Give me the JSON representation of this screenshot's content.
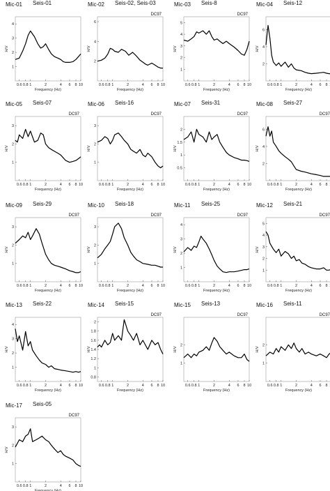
{
  "chart_data": [
    {
      "type": "line",
      "mic": "Mic-01",
      "seis": "Seis-01",
      "tag": "",
      "ylabel": "H/V",
      "xlabel": "Frequency (Hz)",
      "xlim": [
        0.5,
        10
      ],
      "ylim": [
        0,
        4.5
      ],
      "yticks": [
        1,
        2,
        3,
        4
      ],
      "xticks": [
        "0.6",
        "0.8",
        "1",
        "2",
        "4",
        "6",
        "8",
        "10"
      ],
      "x": [
        0.5,
        0.6,
        0.7,
        0.8,
        0.9,
        1.0,
        1.2,
        1.4,
        1.6,
        1.8,
        2.0,
        2.3,
        2.6,
        3,
        3.5,
        4,
        4.5,
        5,
        6,
        7,
        8,
        9,
        10
      ],
      "y": [
        1.5,
        1.6,
        2.1,
        2.6,
        3.2,
        3.5,
        3.1,
        2.6,
        2.3,
        2.4,
        2.6,
        2.2,
        1.9,
        1.7,
        1.6,
        1.5,
        1.35,
        1.3,
        1.3,
        1.35,
        1.5,
        1.7,
        1.9
      ]
    },
    {
      "type": "line",
      "mic": "Mic-02",
      "seis": "Seis-02, Seis-03",
      "tag": "DC97",
      "ylabel": "H/V",
      "xlabel": "Frequency (Hz)",
      "xlim": [
        0.5,
        10
      ],
      "ylim": [
        0,
        6.5
      ],
      "yticks": [
        2,
        4,
        6
      ],
      "xticks": [
        "0.6",
        "0.8",
        "1",
        "2",
        "4",
        "6",
        "8",
        "10"
      ],
      "x": [
        0.5,
        0.6,
        0.7,
        0.8,
        0.9,
        1.0,
        1.1,
        1.3,
        1.5,
        1.8,
        2.1,
        2.5,
        3,
        3.5,
        4,
        4.5,
        5,
        6,
        7,
        8,
        9,
        10
      ],
      "y": [
        2.0,
        2.1,
        2.3,
        2.7,
        3.3,
        3.2,
        3.0,
        2.9,
        3.2,
        3.0,
        2.6,
        2.9,
        2.5,
        2.1,
        1.9,
        1.7,
        1.6,
        1.8,
        1.6,
        1.4,
        1.3,
        1.3
      ]
    },
    {
      "type": "line",
      "mic": "Mic-03",
      "seis": "Seis-8",
      "tag": "DC97",
      "ylabel": "H/V",
      "xlabel": "Frequency (Hz)",
      "xlim": [
        0.5,
        10
      ],
      "ylim": [
        0,
        5.5
      ],
      "yticks": [
        1,
        2,
        3,
        4,
        5
      ],
      "xticks": [
        "0.6",
        "0.8",
        "1",
        "2",
        "4",
        "6",
        "8",
        "10"
      ],
      "x": [
        0.5,
        0.6,
        0.7,
        0.8,
        0.9,
        1.0,
        1.2,
        1.4,
        1.6,
        1.8,
        2,
        2.3,
        2.6,
        3,
        3.5,
        4,
        5,
        6,
        7,
        8,
        9,
        10
      ],
      "y": [
        3.5,
        3.4,
        3.6,
        3.8,
        4.2,
        4.1,
        4.3,
        4.0,
        4.3,
        3.8,
        3.5,
        3.6,
        3.4,
        3.2,
        3.4,
        3.2,
        2.9,
        2.6,
        2.3,
        2.2,
        2.7,
        3.4
      ]
    },
    {
      "type": "line",
      "mic": "Mic-04",
      "seis": "Seis-12",
      "tag": "",
      "ylabel": "H/V",
      "xlabel": "Frequency (Hz)",
      "xlim": [
        0.5,
        10
      ],
      "ylim": [
        0,
        7.5
      ],
      "yticks": [
        2,
        4,
        6
      ],
      "xticks": [
        "0.6",
        "0.8",
        "1",
        "2",
        "4",
        "6",
        "8",
        "10"
      ],
      "x": [
        0.5,
        0.55,
        0.6,
        0.65,
        0.7,
        0.8,
        0.9,
        1.0,
        1.2,
        1.4,
        1.6,
        1.8,
        2,
        2.5,
        3,
        3.5,
        4,
        5,
        6,
        7,
        8,
        9,
        10
      ],
      "y": [
        4.2,
        6.5,
        5.0,
        3.0,
        2.2,
        1.8,
        2.1,
        1.7,
        2.2,
        1.6,
        2.0,
        1.5,
        1.3,
        1.2,
        1.0,
        0.9,
        0.85,
        0.9,
        0.95,
        1.0,
        0.9,
        0.85,
        0.8
      ]
    },
    {
      "type": "line",
      "mic": "Mic-05",
      "seis": "Seis-07",
      "tag": "DC97",
      "ylabel": "H/V",
      "xlabel": "Frequency (Hz)",
      "xlim": [
        0.5,
        10
      ],
      "ylim": [
        0,
        3.5
      ],
      "yticks": [
        1,
        2,
        3
      ],
      "xticks": [
        "0.6",
        "0.8",
        "1",
        "2",
        "4",
        "6",
        "8",
        "10"
      ],
      "x": [
        0.5,
        0.55,
        0.6,
        0.7,
        0.8,
        0.9,
        1.0,
        1.2,
        1.4,
        1.6,
        1.8,
        2,
        2.3,
        2.6,
        3,
        3.5,
        4,
        5,
        6,
        7,
        8,
        9,
        10
      ],
      "y": [
        2.2,
        2.1,
        2.5,
        2.3,
        2.8,
        2.4,
        2.7,
        2.1,
        2.2,
        2.6,
        2.5,
        2.0,
        1.8,
        1.7,
        1.6,
        1.5,
        1.4,
        1.1,
        1.0,
        1.05,
        1.1,
        1.2,
        1.3
      ]
    },
    {
      "type": "line",
      "mic": "Mic-06",
      "seis": "Seis-16",
      "tag": "DC97",
      "ylabel": "H/V",
      "xlabel": "Frequency (Hz)",
      "xlim": [
        0.5,
        10
      ],
      "ylim": [
        0,
        3.5
      ],
      "yticks": [
        1,
        2,
        3
      ],
      "xticks": [
        "0.6",
        "0.8",
        "1",
        "2",
        "4",
        "6",
        "8",
        "10"
      ],
      "x": [
        0.5,
        0.6,
        0.7,
        0.8,
        0.9,
        1.0,
        1.1,
        1.3,
        1.5,
        1.7,
        2,
        2.3,
        2.6,
        3,
        3.5,
        4,
        4.5,
        5,
        6,
        7,
        8,
        9,
        10
      ],
      "y": [
        2.1,
        2.2,
        2.4,
        2.3,
        2.0,
        2.2,
        2.5,
        2.6,
        2.4,
        2.2,
        2.0,
        1.7,
        1.6,
        1.5,
        1.7,
        1.4,
        1.3,
        1.5,
        1.3,
        1.0,
        0.8,
        0.7,
        0.8
      ]
    },
    {
      "type": "line",
      "mic": "Mic-07",
      "seis": "Seis-31",
      "tag": "DC97",
      "ylabel": "H/V",
      "xlabel": "Frequency (Hz)",
      "xlim": [
        0.5,
        10
      ],
      "ylim": [
        0,
        2.5
      ],
      "yticks": [
        0.5,
        1.0,
        1.5,
        2.0
      ],
      "xticks": [
        "0.6",
        "0.8",
        "1",
        "2",
        "4",
        "6",
        "8",
        "10"
      ],
      "x": [
        0.5,
        0.6,
        0.7,
        0.8,
        0.9,
        1.0,
        1.2,
        1.4,
        1.6,
        1.8,
        2,
        2.3,
        2.6,
        3,
        3.5,
        4,
        5,
        6,
        7,
        8,
        9,
        10
      ],
      "y": [
        1.6,
        1.7,
        1.9,
        1.5,
        2.0,
        1.8,
        1.7,
        1.5,
        1.9,
        1.6,
        1.7,
        1.8,
        1.5,
        1.3,
        1.1,
        1.0,
        0.9,
        0.85,
        0.8,
        0.8,
        0.78,
        0.75
      ]
    },
    {
      "type": "line",
      "mic": "Mic-08",
      "seis": "Seis-27",
      "tag": "DC97",
      "ylabel": "H/V",
      "xlabel": "Frequency (Hz)",
      "xlim": [
        0.5,
        10
      ],
      "ylim": [
        0,
        7.5
      ],
      "yticks": [
        2,
        4,
        6
      ],
      "xticks": [
        "0.6",
        "0.8",
        "1",
        "2",
        "4",
        "6",
        "8",
        "10"
      ],
      "x": [
        0.5,
        0.55,
        0.6,
        0.65,
        0.7,
        0.8,
        0.9,
        1.0,
        1.2,
        1.4,
        1.6,
        1.8,
        2,
        2.5,
        3,
        4,
        5,
        6,
        7,
        8,
        9,
        10
      ],
      "y": [
        5.2,
        6.3,
        5.2,
        5.8,
        4.5,
        4.0,
        3.5,
        3.2,
        2.8,
        2.5,
        2.2,
        1.7,
        1.3,
        1.1,
        1.0,
        0.8,
        0.7,
        0.6,
        0.5,
        0.5,
        0.5,
        0.5
      ]
    },
    {
      "type": "line",
      "mic": "Mic-09",
      "seis": "Seis-29",
      "tag": "DC97",
      "ylabel": "H/V",
      "xlabel": "Frequency (Hz)",
      "xlim": [
        0.5,
        10
      ],
      "ylim": [
        0,
        3.5
      ],
      "yticks": [
        1,
        2,
        3
      ],
      "xticks": [
        "0.6",
        "0.8",
        "1",
        "2",
        "4",
        "6",
        "8",
        "10"
      ],
      "x": [
        0.5,
        0.6,
        0.7,
        0.8,
        0.9,
        1.0,
        1.1,
        1.3,
        1.5,
        1.7,
        2,
        2.3,
        2.6,
        3,
        3.5,
        4,
        5,
        6,
        7,
        8,
        9,
        10
      ],
      "y": [
        2.1,
        2.3,
        2.5,
        2.4,
        2.7,
        2.3,
        2.5,
        2.9,
        2.6,
        2.1,
        1.5,
        1.2,
        1.0,
        0.9,
        0.85,
        0.8,
        0.7,
        0.6,
        0.55,
        0.5,
        0.5,
        0.55
      ]
    },
    {
      "type": "line",
      "mic": "Mic-10",
      "seis": "Seis-18",
      "tag": "DC97",
      "ylabel": "H/V",
      "xlabel": "Frequency (Hz)",
      "xlim": [
        0.5,
        10
      ],
      "ylim": [
        0,
        3.5
      ],
      "yticks": [
        1,
        2,
        3
      ],
      "xticks": [
        "0.6",
        "0.8",
        "1",
        "2",
        "4",
        "6",
        "8",
        "10"
      ],
      "x": [
        0.5,
        0.6,
        0.7,
        0.8,
        0.9,
        1.0,
        1.1,
        1.3,
        1.5,
        1.7,
        2,
        2.3,
        2.6,
        3,
        3.5,
        4,
        5,
        6,
        7,
        8,
        9,
        10
      ],
      "y": [
        1.3,
        1.5,
        1.8,
        2.0,
        2.2,
        2.6,
        3.0,
        3.2,
        2.9,
        2.4,
        2.0,
        1.6,
        1.4,
        1.2,
        1.1,
        1.0,
        0.95,
        0.9,
        0.9,
        0.85,
        0.8,
        0.8
      ]
    },
    {
      "type": "line",
      "mic": "Mic-11",
      "seis": "Seis-25",
      "tag": "DC97",
      "ylabel": "H/V",
      "xlabel": "Frequency (Hz)",
      "xlim": [
        0.5,
        10
      ],
      "ylim": [
        0,
        4.5
      ],
      "yticks": [
        1,
        2,
        3,
        4
      ],
      "xticks": [
        "0.6",
        "0.8",
        "1",
        "2",
        "4",
        "6",
        "8",
        "10"
      ],
      "x": [
        0.5,
        0.6,
        0.7,
        0.8,
        0.9,
        1.0,
        1.1,
        1.2,
        1.4,
        1.6,
        1.8,
        2,
        2.3,
        2.6,
        3,
        3.5,
        4,
        5,
        6,
        7,
        8,
        9,
        10
      ],
      "y": [
        2.1,
        2.4,
        2.2,
        2.5,
        2.4,
        2.8,
        3.2,
        3.0,
        2.7,
        2.3,
        1.9,
        1.5,
        1.1,
        0.9,
        0.7,
        0.65,
        0.7,
        0.7,
        0.75,
        0.8,
        0.85,
        0.85,
        0.9
      ]
    },
    {
      "type": "line",
      "mic": "Mic-12",
      "seis": "Seis-21",
      "tag": "DC97",
      "ylabel": "H/V",
      "xlabel": "Frequency (Hz)",
      "xlim": [
        0.5,
        10
      ],
      "ylim": [
        0,
        5.5
      ],
      "yticks": [
        1,
        2,
        3,
        4,
        5
      ],
      "xticks": [
        "0.6",
        "0.8",
        "1",
        "2",
        "4",
        "6",
        "8",
        "10"
      ],
      "x": [
        0.5,
        0.55,
        0.6,
        0.7,
        0.8,
        0.9,
        1.0,
        1.2,
        1.4,
        1.6,
        1.8,
        2,
        2.3,
        2.6,
        3,
        3.5,
        4,
        5,
        6,
        7,
        8,
        9,
        10
      ],
      "y": [
        4.3,
        4.0,
        3.3,
        2.8,
        2.5,
        2.8,
        2.2,
        2.6,
        2.4,
        2.0,
        2.2,
        1.8,
        1.9,
        1.6,
        1.5,
        1.3,
        1.2,
        1.1,
        1.1,
        1.2,
        1.0,
        1.0,
        1.1
      ]
    },
    {
      "type": "line",
      "mic": "Mic-13",
      "seis": "Seis-22",
      "tag": "",
      "ylabel": "H/V",
      "xlabel": "Frequency (Hz)",
      "xlim": [
        0.5,
        10
      ],
      "ylim": [
        0,
        4.5
      ],
      "yticks": [
        1,
        2,
        3,
        4
      ],
      "xticks": [
        "0.6",
        "0.8",
        "1",
        "2",
        "4",
        "6",
        "8",
        "10"
      ],
      "x": [
        0.5,
        0.55,
        0.6,
        0.7,
        0.8,
        0.9,
        1.0,
        1.1,
        1.3,
        1.5,
        1.7,
        2,
        2.3,
        2.6,
        3,
        3.5,
        4,
        5,
        6,
        7,
        8,
        9,
        10
      ],
      "y": [
        3.7,
        2.8,
        3.2,
        2.2,
        3.5,
        2.5,
        2.8,
        2.2,
        1.8,
        1.5,
        1.3,
        1.2,
        1.0,
        1.1,
        0.9,
        0.85,
        0.8,
        0.75,
        0.7,
        0.65,
        0.7,
        0.65,
        0.7
      ]
    },
    {
      "type": "line",
      "mic": "Mic-14",
      "seis": "Seis-15",
      "tag": "DC97",
      "ylabel": "H/V",
      "xlabel": "Frequency (Hz)",
      "xlim": [
        0.5,
        10
      ],
      "ylim": [
        0.7,
        2.1
      ],
      "yticks": [
        0.8,
        1.0,
        1.2,
        1.4,
        1.6,
        1.8,
        2.0
      ],
      "xticks": [
        "0.6",
        "0.8",
        "1",
        "2",
        "4",
        "6",
        "8",
        "10"
      ],
      "x": [
        0.5,
        0.55,
        0.6,
        0.7,
        0.8,
        0.9,
        1.0,
        1.1,
        1.3,
        1.5,
        1.7,
        2,
        2.3,
        2.6,
        3,
        3.5,
        4,
        5,
        6,
        7,
        8,
        9,
        10
      ],
      "y": [
        1.45,
        1.5,
        1.45,
        1.6,
        1.5,
        1.55,
        1.75,
        1.6,
        1.7,
        1.6,
        2.05,
        1.8,
        1.7,
        1.6,
        1.75,
        1.5,
        1.6,
        1.4,
        1.6,
        1.5,
        1.55,
        1.4,
        1.3
      ]
    },
    {
      "type": "line",
      "mic": "Mic-15",
      "seis": "Seis-13",
      "tag": "DC97",
      "ylabel": "H/V",
      "xlabel": "Frequency (Hz)",
      "xlim": [
        0.5,
        10
      ],
      "ylim": [
        0,
        3.5
      ],
      "yticks": [
        1,
        2
      ],
      "xticks": [
        "0.6",
        "0.8",
        "1",
        "2",
        "4",
        "6",
        "8",
        "10"
      ],
      "x": [
        0.5,
        0.6,
        0.7,
        0.8,
        0.9,
        1.0,
        1.2,
        1.4,
        1.6,
        1.8,
        2,
        2.3,
        2.6,
        3,
        3.5,
        4,
        5,
        6,
        7,
        8,
        9,
        10
      ],
      "y": [
        1.3,
        1.5,
        1.3,
        1.5,
        1.4,
        1.6,
        1.7,
        1.9,
        1.7,
        2.1,
        2.4,
        2.2,
        1.9,
        1.7,
        1.5,
        1.6,
        1.4,
        1.3,
        1.3,
        1.5,
        1.2,
        1.1
      ]
    },
    {
      "type": "line",
      "mic": "Mic-16",
      "seis": "Seis-11",
      "tag": "DC97",
      "ylabel": "H/V",
      "xlabel": "Frequency (Hz)",
      "xlim": [
        0.5,
        10
      ],
      "ylim": [
        0,
        3.5
      ],
      "yticks": [
        1,
        2
      ],
      "xticks": [
        "0.6",
        "0.8",
        "1",
        "2",
        "4",
        "6",
        "8",
        "10"
      ],
      "x": [
        0.5,
        0.6,
        0.7,
        0.8,
        0.9,
        1.0,
        1.2,
        1.4,
        1.6,
        1.8,
        2,
        2.3,
        2.6,
        3,
        3.5,
        4,
        5,
        6,
        7,
        8,
        9,
        10
      ],
      "y": [
        1.4,
        1.6,
        1.5,
        1.8,
        1.6,
        1.9,
        1.7,
        2.0,
        1.8,
        2.1,
        1.8,
        1.6,
        1.8,
        1.5,
        1.6,
        1.5,
        1.4,
        1.5,
        1.4,
        1.3,
        1.5,
        1.6
      ]
    },
    {
      "type": "line",
      "mic": "Mic-17",
      "seis": "Seis-05",
      "tag": "DC97",
      "ylabel": "H/V",
      "xlabel": "Frequency (Hz)",
      "xlim": [
        0.5,
        10
      ],
      "ylim": [
        0,
        3.5
      ],
      "yticks": [
        1,
        2,
        3
      ],
      "xticks": [
        "0.6",
        "0.8",
        "1",
        "2",
        "4",
        "6",
        "8",
        "10"
      ],
      "x": [
        0.5,
        0.6,
        0.7,
        0.8,
        0.9,
        1.0,
        1.1,
        1.3,
        1.5,
        1.7,
        2,
        2.3,
        2.6,
        3,
        3.5,
        4,
        4.5,
        5,
        6,
        7,
        8,
        9,
        10
      ],
      "y": [
        1.9,
        2.3,
        2.2,
        2.5,
        2.6,
        2.9,
        2.2,
        2.3,
        2.4,
        2.5,
        2.3,
        2.2,
        2.0,
        1.8,
        1.6,
        1.7,
        1.5,
        1.4,
        1.3,
        1.2,
        1.0,
        0.9,
        0.85
      ]
    }
  ]
}
